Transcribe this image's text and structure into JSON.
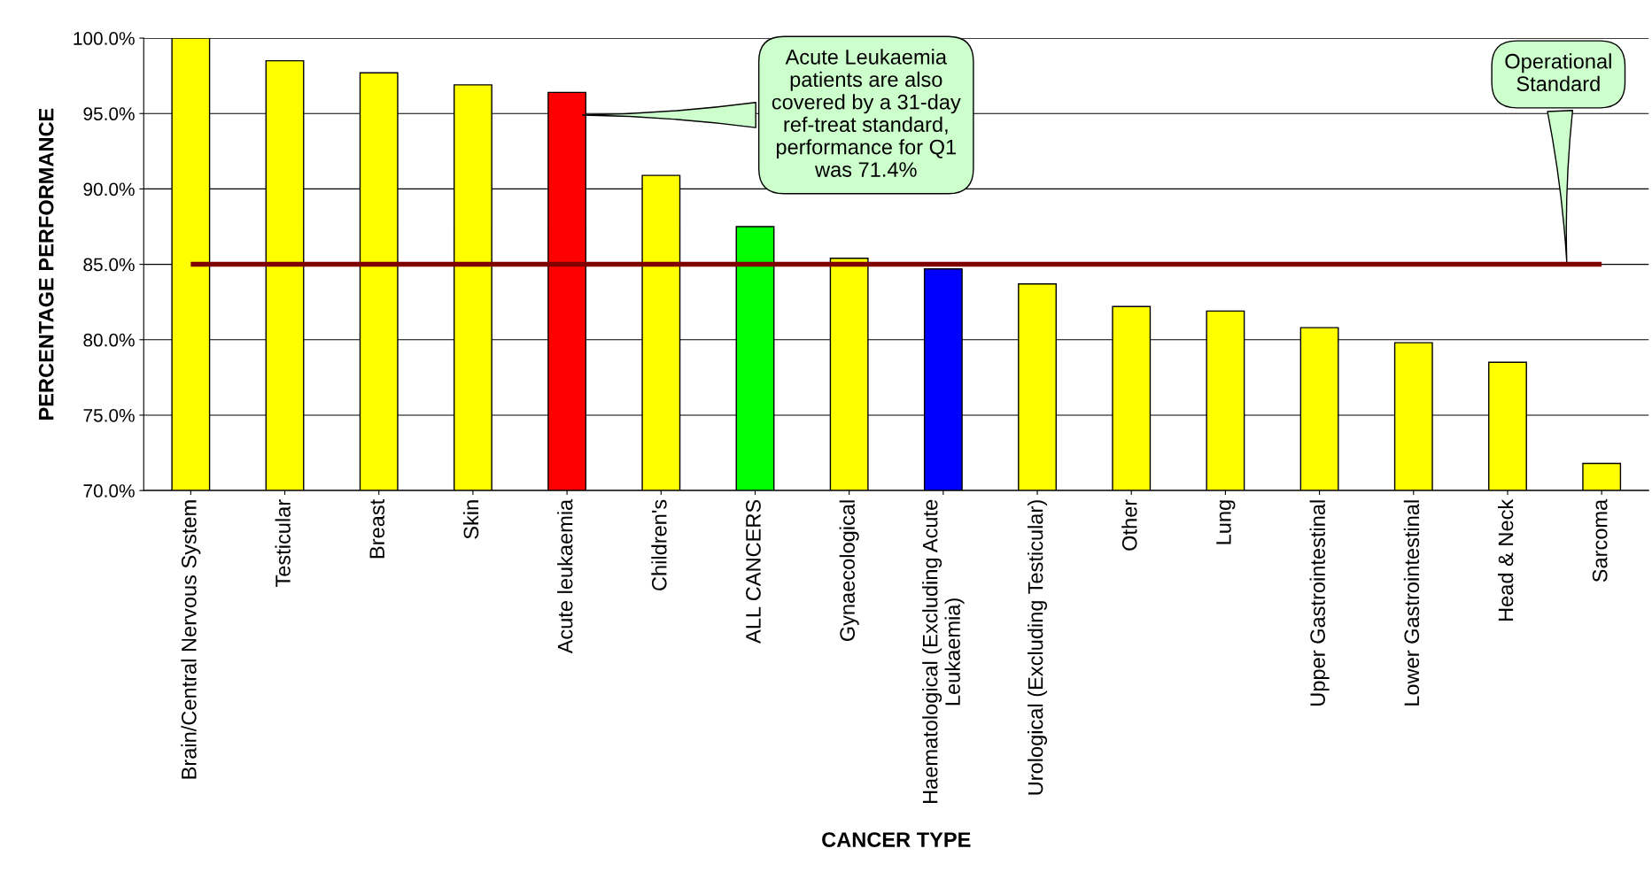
{
  "chart_data": {
    "type": "bar",
    "xlabel": "CANCER TYPE",
    "ylabel": "PERCENTAGE PERFORMANCE",
    "categories": [
      "Brain/Central Nervous System",
      "Testicular",
      "Breast",
      "Skin",
      "Acute leukaemia",
      "Children's",
      "ALL CANCERS",
      "Gynaecological",
      "Haematological (Excluding Acute\nLeukaemia)",
      "Urological (Excluding Testicular)",
      "Other",
      "Lung",
      "Upper Gastrointestinal",
      "Lower Gastrointestinal",
      "Head & Neck",
      "Sarcoma"
    ],
    "values": [
      100.0,
      98.5,
      97.7,
      96.9,
      96.4,
      90.9,
      87.5,
      85.4,
      84.7,
      83.7,
      82.2,
      81.9,
      80.8,
      79.8,
      78.5,
      71.8
    ],
    "colors": [
      "#ffff00",
      "#ffff00",
      "#ffff00",
      "#ffff00",
      "#ff0000",
      "#ffff00",
      "#00ff00",
      "#ffff00",
      "#0000ff",
      "#ffff00",
      "#ffff00",
      "#ffff00",
      "#ffff00",
      "#ffff00",
      "#ffff00",
      "#ffff00"
    ],
    "ylim": [
      70,
      100
    ],
    "yticks": [
      {
        "value": 70,
        "label": "70.0%"
      },
      {
        "value": 75,
        "label": "75.0%"
      },
      {
        "value": 80,
        "label": "80.0%"
      },
      {
        "value": 85,
        "label": "85.0%"
      },
      {
        "value": 90,
        "label": "90.0%"
      },
      {
        "value": 95,
        "label": "95.0%"
      },
      {
        "value": 100,
        "label": "100.0%"
      }
    ],
    "grid": "y",
    "ref_lines": [
      {
        "axis": "y",
        "value": 85,
        "label": "Operational\nStandard",
        "color": "#800000"
      }
    ],
    "annotations": [
      "Acute Leukaemia\npatients are also\ncovered by a 31-day\nref-treat standard,\nperformance for Q1\nwas 71.4%"
    ]
  }
}
